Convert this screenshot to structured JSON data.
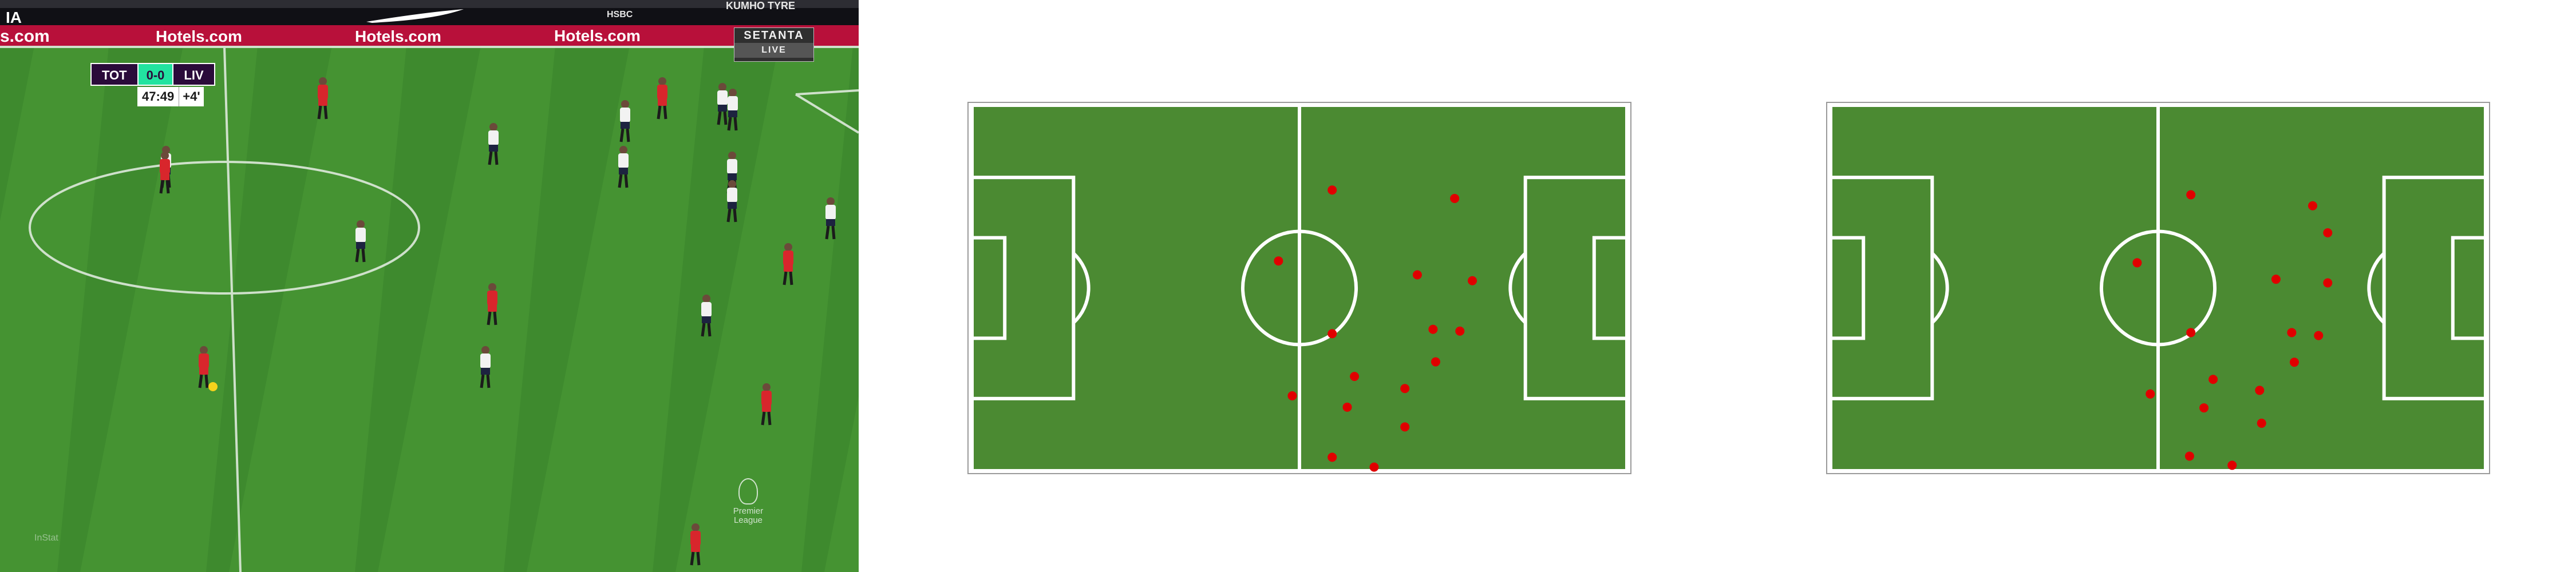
{
  "broadcast": {
    "scorebug": {
      "home": "TOT",
      "score": "0-0",
      "away": "LIV",
      "clock": "47:49",
      "added_time": "+4'"
    },
    "broadcaster": {
      "line1": "SETANTA",
      "line2": "LIVE"
    },
    "league_logo": {
      "line1": "Premier",
      "line2": "League"
    },
    "watermark": "InStat",
    "ads": {
      "hotels": "Hotels.com",
      "bank": "HSBC",
      "tyre": "KUMHO TYRE",
      "left_fragment": "s.com",
      "left_top": "IA"
    },
    "colors": {
      "grass_a": "#3e8a2e",
      "grass_b": "#4b9a36",
      "board": "#b8103a",
      "home_kit": "#f2f2f2",
      "away_kit": "#d8262c"
    }
  },
  "pitches": [
    {
      "name": "pitch-view-1",
      "colors": {
        "grass": "#4b8a32",
        "line": "#ffffff",
        "player": "#e00000"
      },
      "players": [
        [
          0.55,
          0.232
        ],
        [
          0.737,
          0.255
        ],
        [
          0.468,
          0.426
        ],
        [
          0.68,
          0.464
        ],
        [
          0.764,
          0.48
        ],
        [
          0.55,
          0.625
        ],
        [
          0.704,
          0.613
        ],
        [
          0.745,
          0.618
        ],
        [
          0.708,
          0.702
        ],
        [
          0.584,
          0.742
        ],
        [
          0.661,
          0.775
        ],
        [
          0.489,
          0.795
        ],
        [
          0.573,
          0.826
        ],
        [
          0.661,
          0.88
        ],
        [
          0.55,
          0.963
        ],
        [
          0.614,
          0.99
        ]
      ]
    },
    {
      "name": "pitch-view-2",
      "colors": {
        "grass": "#4b8a32",
        "line": "#ffffff",
        "player": "#e00000"
      },
      "players": [
        [
          0.55,
          0.245
        ],
        [
          0.736,
          0.275
        ],
        [
          0.759,
          0.349
        ],
        [
          0.468,
          0.431
        ],
        [
          0.68,
          0.476
        ],
        [
          0.759,
          0.486
        ],
        [
          0.55,
          0.622
        ],
        [
          0.704,
          0.622
        ],
        [
          0.745,
          0.63
        ],
        [
          0.708,
          0.703
        ],
        [
          0.584,
          0.75
        ],
        [
          0.655,
          0.78
        ],
        [
          0.488,
          0.79
        ],
        [
          0.57,
          0.828
        ],
        [
          0.658,
          0.87
        ],
        [
          0.548,
          0.96
        ],
        [
          0.613,
          0.985
        ]
      ]
    }
  ]
}
